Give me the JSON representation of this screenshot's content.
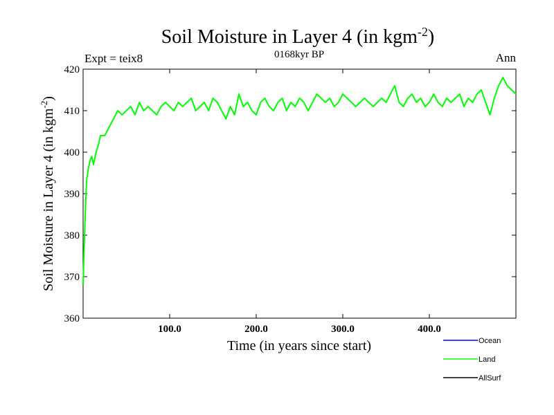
{
  "header": {
    "title_main": "Soil Moisture in Layer 4 (in kgm",
    "title_sup": "-2",
    "title_end": ")",
    "left": "Expt = teix8",
    "center": "0168kyr BP",
    "right": "Ann"
  },
  "chart_data": {
    "type": "line",
    "xlabel": "Time (in years since start)",
    "ylabel_main": "Soil Moisture in Layer 4 (in kgm",
    "ylabel_sup": "-2",
    "ylabel_end": ")",
    "xlim": [
      0,
      500
    ],
    "ylim": [
      360,
      420
    ],
    "xticks": [
      {
        "value": 100,
        "label": "100.0"
      },
      {
        "value": 200,
        "label": "200.0"
      },
      {
        "value": 300,
        "label": "300.0"
      },
      {
        "value": 400,
        "label": "400.0"
      }
    ],
    "yticks": [
      {
        "value": 360,
        "label": "360"
      },
      {
        "value": 370,
        "label": "370"
      },
      {
        "value": 380,
        "label": "380"
      },
      {
        "value": 390,
        "label": "390"
      },
      {
        "value": 400,
        "label": "400"
      },
      {
        "value": 410,
        "label": "410"
      },
      {
        "value": 420,
        "label": "420"
      }
    ],
    "grid": false,
    "legend_position": "bottom-right",
    "series": [
      {
        "name": "Ocean",
        "color": "#0000ff",
        "values": []
      },
      {
        "name": "Land",
        "color": "#00ff00",
        "x": [
          0,
          1,
          2,
          3,
          4,
          6,
          8,
          10,
          12,
          15,
          18,
          20,
          25,
          30,
          35,
          40,
          45,
          50,
          55,
          60,
          65,
          70,
          75,
          80,
          85,
          90,
          95,
          100,
          105,
          110,
          115,
          120,
          125,
          130,
          135,
          140,
          145,
          150,
          155,
          160,
          165,
          170,
          175,
          180,
          185,
          190,
          195,
          200,
          205,
          210,
          215,
          220,
          225,
          230,
          235,
          240,
          245,
          250,
          255,
          260,
          265,
          270,
          275,
          280,
          285,
          290,
          295,
          300,
          305,
          310,
          315,
          320,
          325,
          330,
          335,
          340,
          345,
          350,
          355,
          360,
          365,
          370,
          375,
          380,
          385,
          390,
          395,
          400,
          405,
          410,
          415,
          420,
          425,
          430,
          435,
          440,
          445,
          450,
          455,
          460,
          465,
          470,
          475,
          480,
          485,
          490,
          495,
          500
        ],
        "values": [
          368,
          376,
          382,
          388,
          393,
          396,
          398,
          399,
          397,
          400,
          402,
          404,
          404,
          406,
          408,
          410,
          409,
          410,
          411,
          409,
          412,
          410,
          411,
          410,
          409,
          411,
          412,
          411,
          410,
          412,
          411,
          412,
          413,
          410,
          411,
          412,
          410,
          413,
          412,
          410,
          408,
          411,
          409,
          414,
          411,
          412,
          410,
          409,
          412,
          413,
          411,
          410,
          412,
          413,
          410,
          412,
          411,
          413,
          412,
          410,
          412,
          414,
          413,
          412,
          413,
          411,
          412,
          414,
          413,
          412,
          411,
          412,
          413,
          412,
          411,
          412,
          413,
          412,
          414,
          416,
          412,
          411,
          413,
          414,
          412,
          413,
          411,
          412,
          414,
          412,
          411,
          413,
          412,
          413,
          414,
          411,
          413,
          412,
          414,
          415,
          412,
          409,
          413,
          416,
          418,
          416,
          415,
          414
        ]
      },
      {
        "name": "AllSurf",
        "color": "#000000",
        "values": []
      }
    ]
  }
}
